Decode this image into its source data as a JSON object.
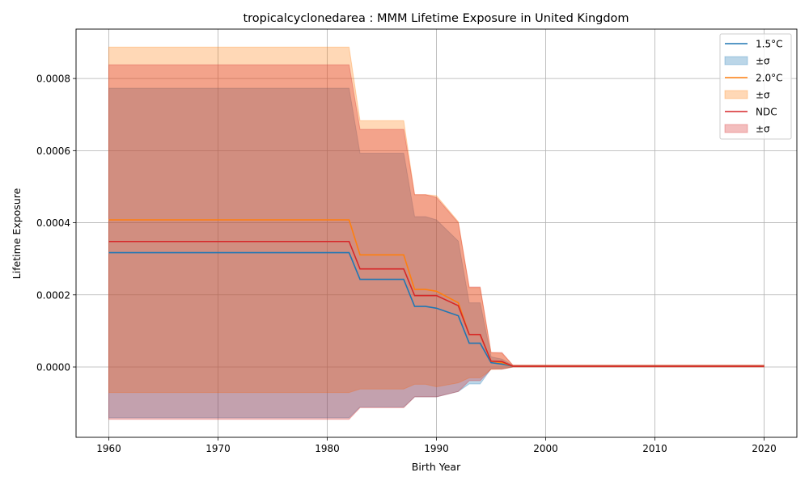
{
  "chart_data": {
    "type": "area",
    "title": "tropicalcyclonedarea : MMM Lifetime Exposure in United Kingdom",
    "xlabel": "Birth Year",
    "ylabel": "Lifetime Exposure",
    "xlim": [
      1957,
      2023
    ],
    "ylim": [
      -0.000195,
      0.000937
    ],
    "x_ticks": [
      1960,
      1970,
      1980,
      1990,
      2000,
      2010,
      2020
    ],
    "y_ticks": [
      0.0,
      0.0002,
      0.0004,
      0.0006,
      0.0008
    ],
    "y_tick_labels": [
      "0.0000",
      "0.0002",
      "0.0004",
      "0.0006",
      "0.0008"
    ],
    "grid": true,
    "legend_position": "top-right",
    "x": [
      1960,
      1982,
      1983,
      1987,
      1988,
      1989,
      1990,
      1992,
      1993,
      1994,
      1995,
      1996,
      1997,
      1998,
      2020
    ],
    "series": [
      {
        "name": "1.5°C",
        "color": "#1f77b4",
        "mean": [
          0.000317,
          0.000317,
          0.000243,
          0.000243,
          0.000168,
          0.000168,
          0.000163,
          0.000142,
          6.6e-05,
          6.6e-05,
          1.2e-05,
          8e-06,
          2e-06,
          2e-06,
          2e-06
        ],
        "upper": [
          0.000773,
          0.000773,
          0.000593,
          0.000593,
          0.000417,
          0.000417,
          0.000408,
          0.000349,
          0.000178,
          0.000178,
          2.8e-05,
          2.2e-05,
          4e-06,
          4e-06,
          4e-06
        ],
        "lower": [
          -0.000141,
          -0.000141,
          -0.000111,
          -0.000111,
          -8.3e-05,
          -8.3e-05,
          -8.3e-05,
          -6.8e-05,
          -4.7e-05,
          -4.7e-05,
          -5e-06,
          -6e-06,
          0.0,
          0.0,
          0.0
        ]
      },
      {
        "name": "2.0°C",
        "color": "#ff7f0e",
        "mean": [
          0.000408,
          0.000408,
          0.000311,
          0.000311,
          0.000215,
          0.000215,
          0.00021,
          0.000178,
          9e-05,
          9e-05,
          1.6e-05,
          1.2e-05,
          2e-06,
          2e-06,
          2e-06
        ],
        "upper": [
          0.000887,
          0.000887,
          0.000683,
          0.000683,
          0.000478,
          0.000478,
          0.000475,
          0.000403,
          0.00022,
          0.00022,
          4e-05,
          3.8e-05,
          5e-06,
          5e-06,
          5e-06
        ],
        "lower": [
          -7.1e-05,
          -7.1e-05,
          -6.1e-05,
          -6.1e-05,
          -4.8e-05,
          -4.8e-05,
          -5.5e-05,
          -4.4e-05,
          -3e-05,
          -3e-05,
          -7e-06,
          -6e-06,
          0.0,
          0.0,
          0.0
        ]
      },
      {
        "name": "NDC",
        "color": "#d62728",
        "mean": [
          0.000348,
          0.000348,
          0.000272,
          0.000272,
          0.000198,
          0.000198,
          0.000198,
          0.00017,
          9e-05,
          9e-05,
          1.6e-05,
          1.5e-05,
          2e-06,
          2e-06,
          2e-06
        ],
        "upper": [
          0.000838,
          0.000838,
          0.000659,
          0.000659,
          0.000478,
          0.000478,
          0.00047,
          0.0004,
          0.000222,
          0.000222,
          4e-05,
          4e-05,
          5e-06,
          5e-06,
          5e-06
        ],
        "lower": [
          -0.000145,
          -0.000145,
          -0.000113,
          -0.000113,
          -8.3e-05,
          -8.3e-05,
          -8.3e-05,
          -6.8e-05,
          -3.8e-05,
          -3.8e-05,
          -6e-06,
          -6e-06,
          0.0,
          0.0,
          0.0
        ]
      }
    ],
    "legend": [
      {
        "label": "1.5°C",
        "kind": "line",
        "color": "#1f77b4"
      },
      {
        "label": "±σ",
        "kind": "patch",
        "color": "#1f77b4"
      },
      {
        "label": "2.0°C",
        "kind": "line",
        "color": "#ff7f0e"
      },
      {
        "label": "±σ",
        "kind": "patch",
        "color": "#ff7f0e"
      },
      {
        "label": "NDC",
        "kind": "line",
        "color": "#d62728"
      },
      {
        "label": "±σ",
        "kind": "patch",
        "color": "#d62728"
      }
    ]
  }
}
